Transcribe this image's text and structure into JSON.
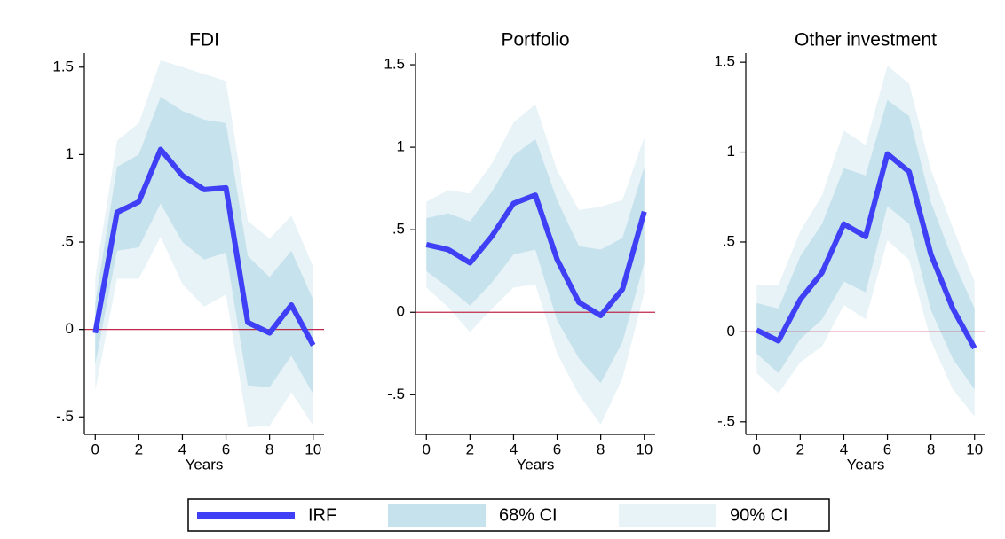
{
  "chart_data": [
    {
      "type": "line",
      "title": "FDI",
      "xlabel": "Years",
      "x": [
        0,
        1,
        2,
        3,
        4,
        5,
        6,
        7,
        8,
        9,
        10
      ],
      "xlim": [
        -0.5,
        10.5
      ],
      "xticks": [
        0,
        2,
        4,
        6,
        8,
        10
      ],
      "ylim": [
        -0.6,
        1.58
      ],
      "yticks": [
        {
          "value": -0.5,
          "label": "-.5"
        },
        0,
        {
          "value": 0.5,
          "label": ".5"
        },
        1,
        1.5
      ],
      "hline": {
        "value": 0,
        "color": "#c0284a"
      },
      "series": [
        {
          "values": [
            -0.02,
            0.67,
            0.73,
            1.03,
            0.88,
            0.8,
            0.81,
            0.04,
            -0.02,
            0.14,
            -0.09
          ]
        },
        {
          "upper": [
            0.15,
            0.93,
            1.0,
            1.33,
            1.25,
            1.2,
            1.18,
            0.42,
            0.3,
            0.45,
            0.17
          ],
          "lower": [
            -0.2,
            0.45,
            0.47,
            0.72,
            0.5,
            0.4,
            0.44,
            -0.32,
            -0.33,
            -0.15,
            -0.37
          ]
        },
        {
          "upper": [
            0.3,
            1.08,
            1.18,
            1.54,
            1.5,
            1.46,
            1.42,
            0.62,
            0.52,
            0.65,
            0.36
          ],
          "lower": [
            -0.35,
            0.29,
            0.29,
            0.53,
            0.26,
            0.13,
            0.2,
            -0.56,
            -0.55,
            -0.36,
            -0.55
          ]
        }
      ]
    },
    {
      "type": "line",
      "title": "Portfolio",
      "xlabel": "Years",
      "x": [
        0,
        1,
        2,
        3,
        4,
        5,
        6,
        7,
        8,
        9,
        10
      ],
      "xlim": [
        -0.5,
        10.5
      ],
      "xticks": [
        0,
        2,
        4,
        6,
        8,
        10
      ],
      "ylim": [
        -0.74,
        1.57
      ],
      "yticks": [
        {
          "value": -0.5,
          "label": "-.5"
        },
        0,
        {
          "value": 0.5,
          "label": ".5"
        },
        1,
        1.5
      ],
      "hline": {
        "value": 0,
        "color": "#c0284a"
      },
      "series": [
        {
          "values": [
            0.41,
            0.38,
            0.3,
            0.46,
            0.66,
            0.71,
            0.32,
            0.06,
            -0.02,
            0.14,
            0.61
          ]
        },
        {
          "upper": [
            0.57,
            0.6,
            0.55,
            0.73,
            0.95,
            1.05,
            0.68,
            0.4,
            0.38,
            0.45,
            0.88
          ],
          "lower": [
            0.25,
            0.15,
            0.04,
            0.18,
            0.35,
            0.38,
            -0.05,
            -0.28,
            -0.43,
            -0.18,
            0.3
          ]
        },
        {
          "upper": [
            0.67,
            0.74,
            0.72,
            0.9,
            1.15,
            1.26,
            0.86,
            0.62,
            0.64,
            0.68,
            1.06
          ],
          "lower": [
            0.15,
            0.03,
            -0.12,
            0.02,
            0.15,
            0.17,
            -0.25,
            -0.5,
            -0.68,
            -0.4,
            0.12
          ]
        }
      ]
    },
    {
      "type": "line",
      "title": "Other investment",
      "xlabel": "Years",
      "x": [
        0,
        1,
        2,
        3,
        4,
        5,
        6,
        7,
        8,
        9,
        10
      ],
      "xlim": [
        -0.5,
        10.5
      ],
      "xticks": [
        0,
        2,
        4,
        6,
        8,
        10
      ],
      "ylim": [
        -0.57,
        1.55
      ],
      "yticks": [
        {
          "value": -0.5,
          "label": "-.5"
        },
        0,
        {
          "value": 0.5,
          "label": ".5"
        },
        1,
        1.5
      ],
      "hline": {
        "value": 0,
        "color": "#c0284a"
      },
      "series": [
        {
          "values": [
            0.01,
            -0.05,
            0.18,
            0.33,
            0.6,
            0.53,
            0.99,
            0.89,
            0.43,
            0.13,
            -0.09
          ]
        },
        {
          "upper": [
            0.16,
            0.13,
            0.42,
            0.6,
            0.91,
            0.87,
            1.29,
            1.2,
            0.72,
            0.4,
            0.13
          ],
          "lower": [
            -0.12,
            -0.23,
            -0.04,
            0.07,
            0.28,
            0.22,
            0.7,
            0.6,
            0.12,
            -0.15,
            -0.32
          ]
        },
        {
          "upper": [
            0.26,
            0.26,
            0.56,
            0.76,
            1.12,
            1.04,
            1.48,
            1.38,
            0.9,
            0.58,
            0.28
          ],
          "lower": [
            -0.23,
            -0.34,
            -0.17,
            -0.08,
            0.15,
            0.07,
            0.51,
            0.4,
            -0.05,
            -0.32,
            -0.47
          ]
        }
      ]
    }
  ],
  "legend": {
    "items": [
      {
        "name": "IRF",
        "color": "#3f3ff5"
      },
      {
        "name": "68% CI",
        "color": "#c6e2ec"
      },
      {
        "name": "90% CI",
        "color": "#e8f3f7"
      }
    ]
  }
}
